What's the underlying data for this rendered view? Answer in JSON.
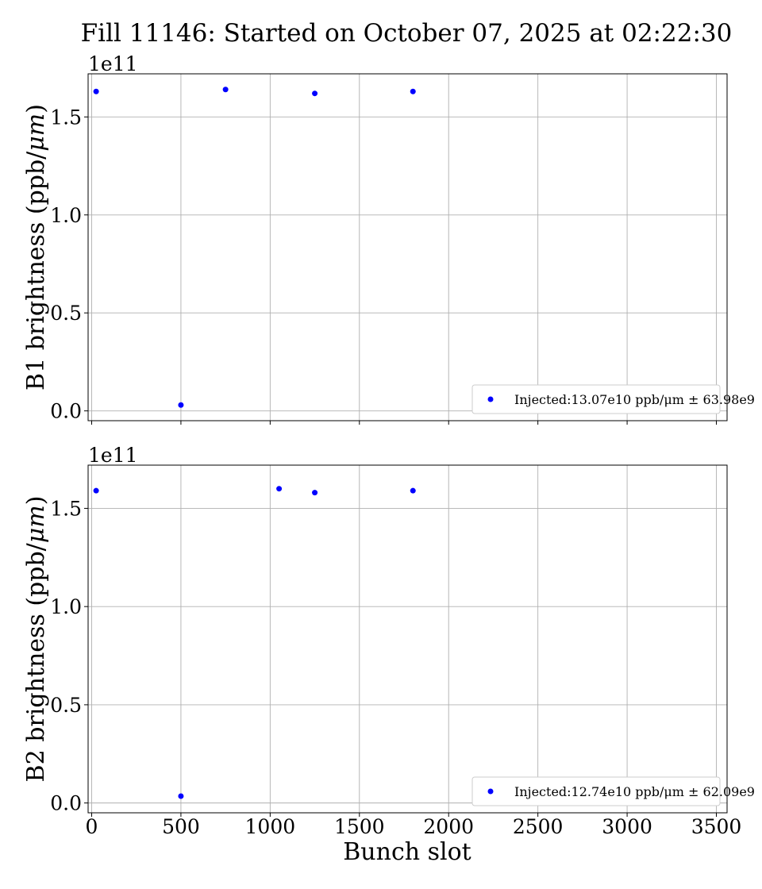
{
  "figure": {
    "title": "Fill 11146: Started on October 07, 2025 at 02:22:30",
    "xlabel": "Bunch slot"
  },
  "colors": {
    "points": "#0000ff",
    "grid": "#b0b0b0"
  },
  "chart_data": [
    {
      "type": "scatter",
      "ylabel_text": "B1 brightness (ppb/",
      "ylabel_unit": "μm",
      "ylabel_close": ")",
      "offset_label": "1e11",
      "xlim": [
        -20,
        3560
      ],
      "ylim": [
        -5000000000.0,
        172000000000.0
      ],
      "xticks": [
        0,
        500,
        1000,
        1500,
        2000,
        2500,
        3000,
        3500
      ],
      "xtick_labels": [],
      "yticks": [
        0.0,
        50000000000.0,
        100000000000.0,
        150000000000.0
      ],
      "ytick_labels": [
        "0.0",
        "0.5",
        "1.0",
        "1.5"
      ],
      "grid": true,
      "legend_position": "lower right",
      "series": [
        {
          "name": "Injected:13.07e10 ppb/μm ± 63.98e9",
          "color": "#0000ff",
          "x": [
            25,
            500,
            750,
            1250,
            1800
          ],
          "y": [
            163000000000.0,
            3000000000.0,
            164000000000.0,
            162000000000.0,
            163000000000.0
          ]
        }
      ]
    },
    {
      "type": "scatter",
      "ylabel_text": "B2 brightness (ppb/",
      "ylabel_unit": "μm",
      "ylabel_close": ")",
      "offset_label": "1e11",
      "xlim": [
        -20,
        3560
      ],
      "ylim": [
        -5000000000.0,
        172000000000.0
      ],
      "xticks": [
        0,
        500,
        1000,
        1500,
        2000,
        2500,
        3000,
        3500
      ],
      "xtick_labels": [
        "0",
        "500",
        "1000",
        "1500",
        "2000",
        "2500",
        "3000",
        "3500"
      ],
      "yticks": [
        0.0,
        50000000000.0,
        100000000000.0,
        150000000000.0
      ],
      "ytick_labels": [
        "0.0",
        "0.5",
        "1.0",
        "1.5"
      ],
      "grid": true,
      "legend_position": "lower right",
      "series": [
        {
          "name": "Injected:12.74e10 ppb/μm ± 62.09e9",
          "color": "#0000ff",
          "x": [
            25,
            500,
            1050,
            1250,
            1800
          ],
          "y": [
            159000000000.0,
            3500000000.0,
            160000000000.0,
            158000000000.0,
            159000000000.0
          ]
        }
      ]
    }
  ]
}
